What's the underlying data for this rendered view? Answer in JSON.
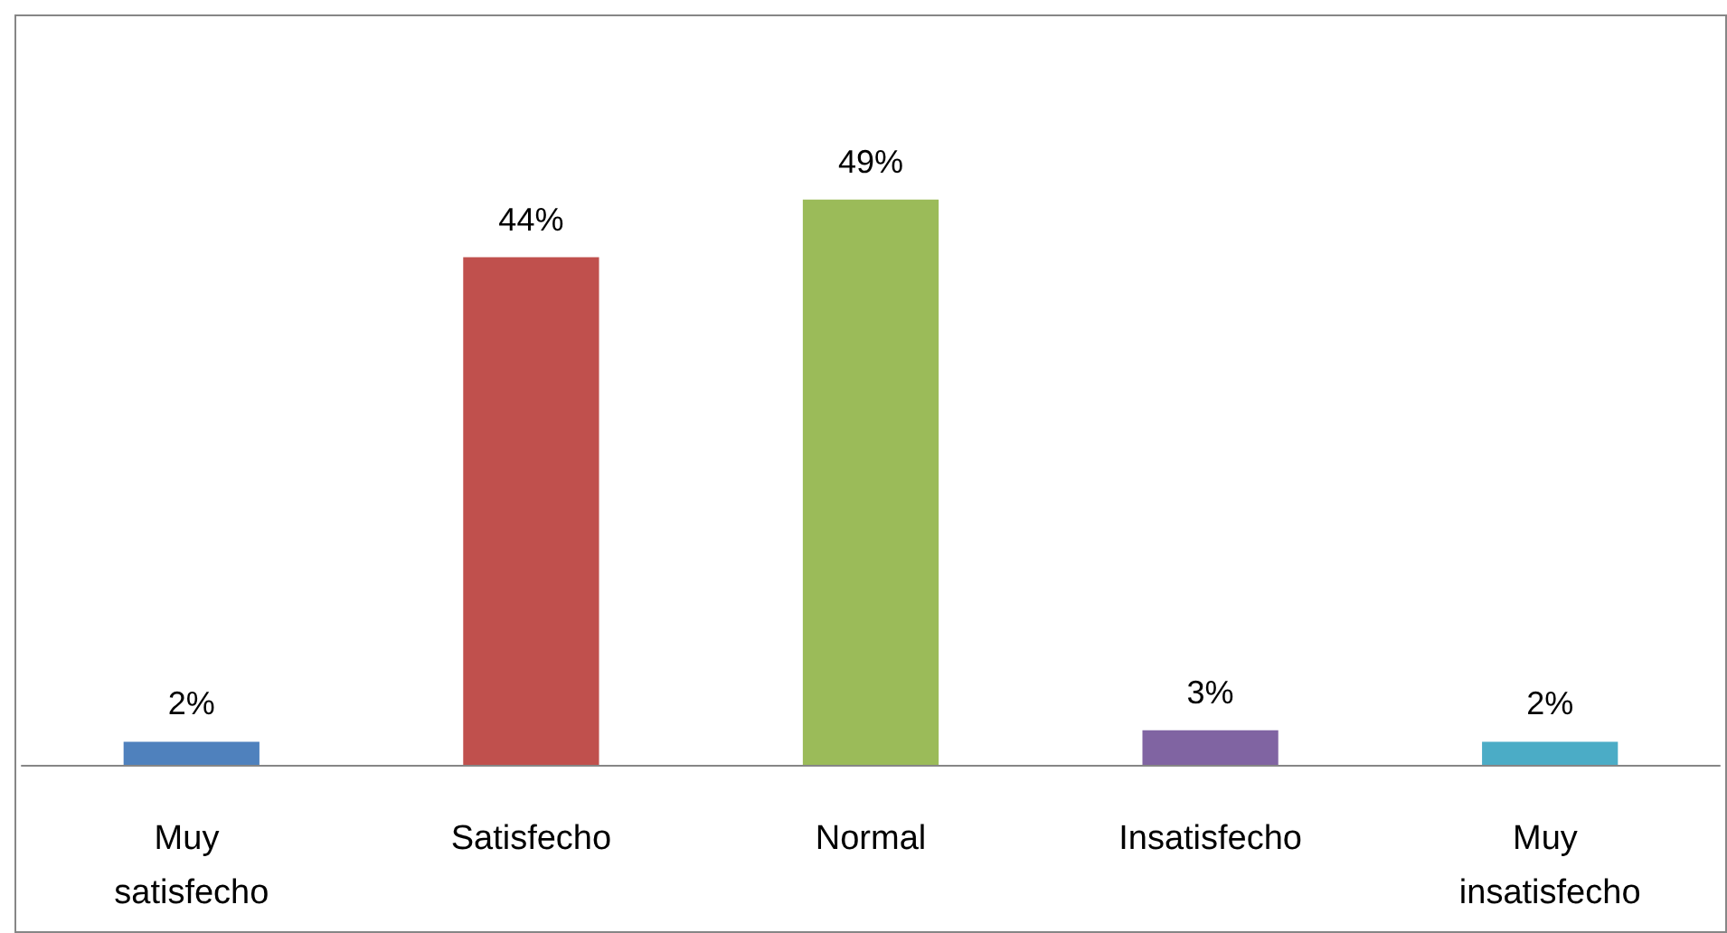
{
  "chart_data": {
    "type": "bar",
    "categories": [
      "Muy satisfecho",
      "Satisfecho",
      "Normal",
      "Insatisfecho",
      "Muy insatisfecho"
    ],
    "values": [
      2,
      44,
      49,
      3,
      2
    ],
    "colors": [
      "#4f81bd",
      "#c0504d",
      "#9bbb59",
      "#8064a2",
      "#4bacc6"
    ],
    "value_labels": [
      "2%",
      "44%",
      "49%",
      "3%",
      "2%"
    ],
    "tick_labels": "x"
  }
}
